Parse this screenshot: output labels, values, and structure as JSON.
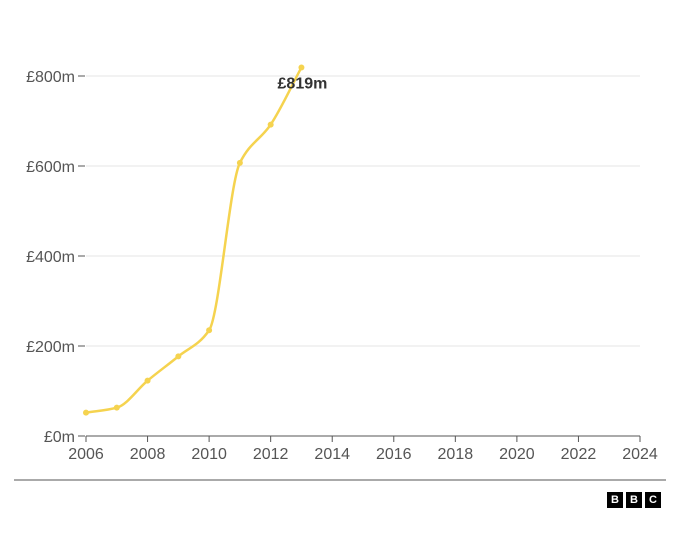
{
  "chart_data": {
    "type": "line",
    "title": "",
    "xlabel": "",
    "ylabel": "",
    "x": [
      2006,
      2007,
      2008,
      2009,
      2010,
      2011,
      2012,
      2013
    ],
    "series": [
      {
        "values": [
          52,
          63,
          123,
          177,
          235,
          607,
          692,
          819
        ],
        "color": "#f5d34f"
      }
    ],
    "xlim": [
      2006,
      2024
    ],
    "ylim": [
      0,
      800
    ],
    "x_ticks": [
      2006,
      2008,
      2010,
      2012,
      2014,
      2016,
      2018,
      2020,
      2022,
      2024
    ],
    "y_ticks": [
      0,
      200,
      400,
      600,
      800
    ],
    "y_tick_labels": [
      "£0m",
      "£200m",
      "£400m",
      "£600m",
      "£800m"
    ],
    "annotation": {
      "x": 2013,
      "y": 819,
      "text": "£819m"
    },
    "grid": true,
    "legend": "none"
  },
  "source": {
    "logo": [
      "B",
      "B",
      "C"
    ]
  }
}
